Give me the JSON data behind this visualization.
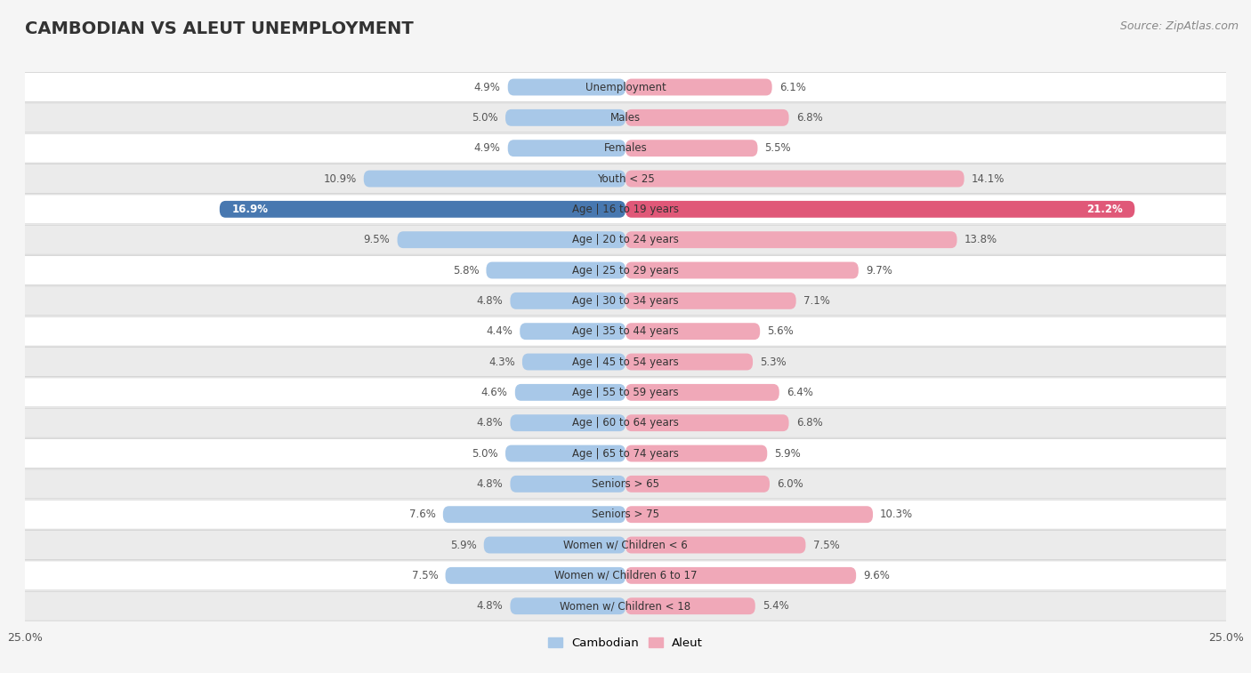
{
  "title": "CAMBODIAN VS ALEUT UNEMPLOYMENT",
  "source": "Source: ZipAtlas.com",
  "categories": [
    "Unemployment",
    "Males",
    "Females",
    "Youth < 25",
    "Age | 16 to 19 years",
    "Age | 20 to 24 years",
    "Age | 25 to 29 years",
    "Age | 30 to 34 years",
    "Age | 35 to 44 years",
    "Age | 45 to 54 years",
    "Age | 55 to 59 years",
    "Age | 60 to 64 years",
    "Age | 65 to 74 years",
    "Seniors > 65",
    "Seniors > 75",
    "Women w/ Children < 6",
    "Women w/ Children 6 to 17",
    "Women w/ Children < 18"
  ],
  "cambodian_values": [
    4.9,
    5.0,
    4.9,
    10.9,
    16.9,
    9.5,
    5.8,
    4.8,
    4.4,
    4.3,
    4.6,
    4.8,
    5.0,
    4.8,
    7.6,
    5.9,
    7.5,
    4.8
  ],
  "aleut_values": [
    6.1,
    6.8,
    5.5,
    14.1,
    21.2,
    13.8,
    9.7,
    7.1,
    5.6,
    5.3,
    6.4,
    6.8,
    5.9,
    6.0,
    10.3,
    7.5,
    9.6,
    5.4
  ],
  "cambodian_color": "#a8c8e8",
  "aleut_color": "#f0a8b8",
  "aleut_highlight_color": "#e05878",
  "cambodian_highlight_color": "#4878b0",
  "highlight_rows": [
    4
  ],
  "x_max": 25.0,
  "bar_height": 0.55,
  "background_color": "#f5f5f5",
  "row_bg_light": "#ffffff",
  "row_bg_dark": "#ebebeb",
  "legend_labels": [
    "Cambodian",
    "Aleut"
  ],
  "legend_colors": [
    "#a8c8e8",
    "#f0a8b8"
  ],
  "label_fontsize": 8.5,
  "title_fontsize": 14,
  "source_fontsize": 9
}
